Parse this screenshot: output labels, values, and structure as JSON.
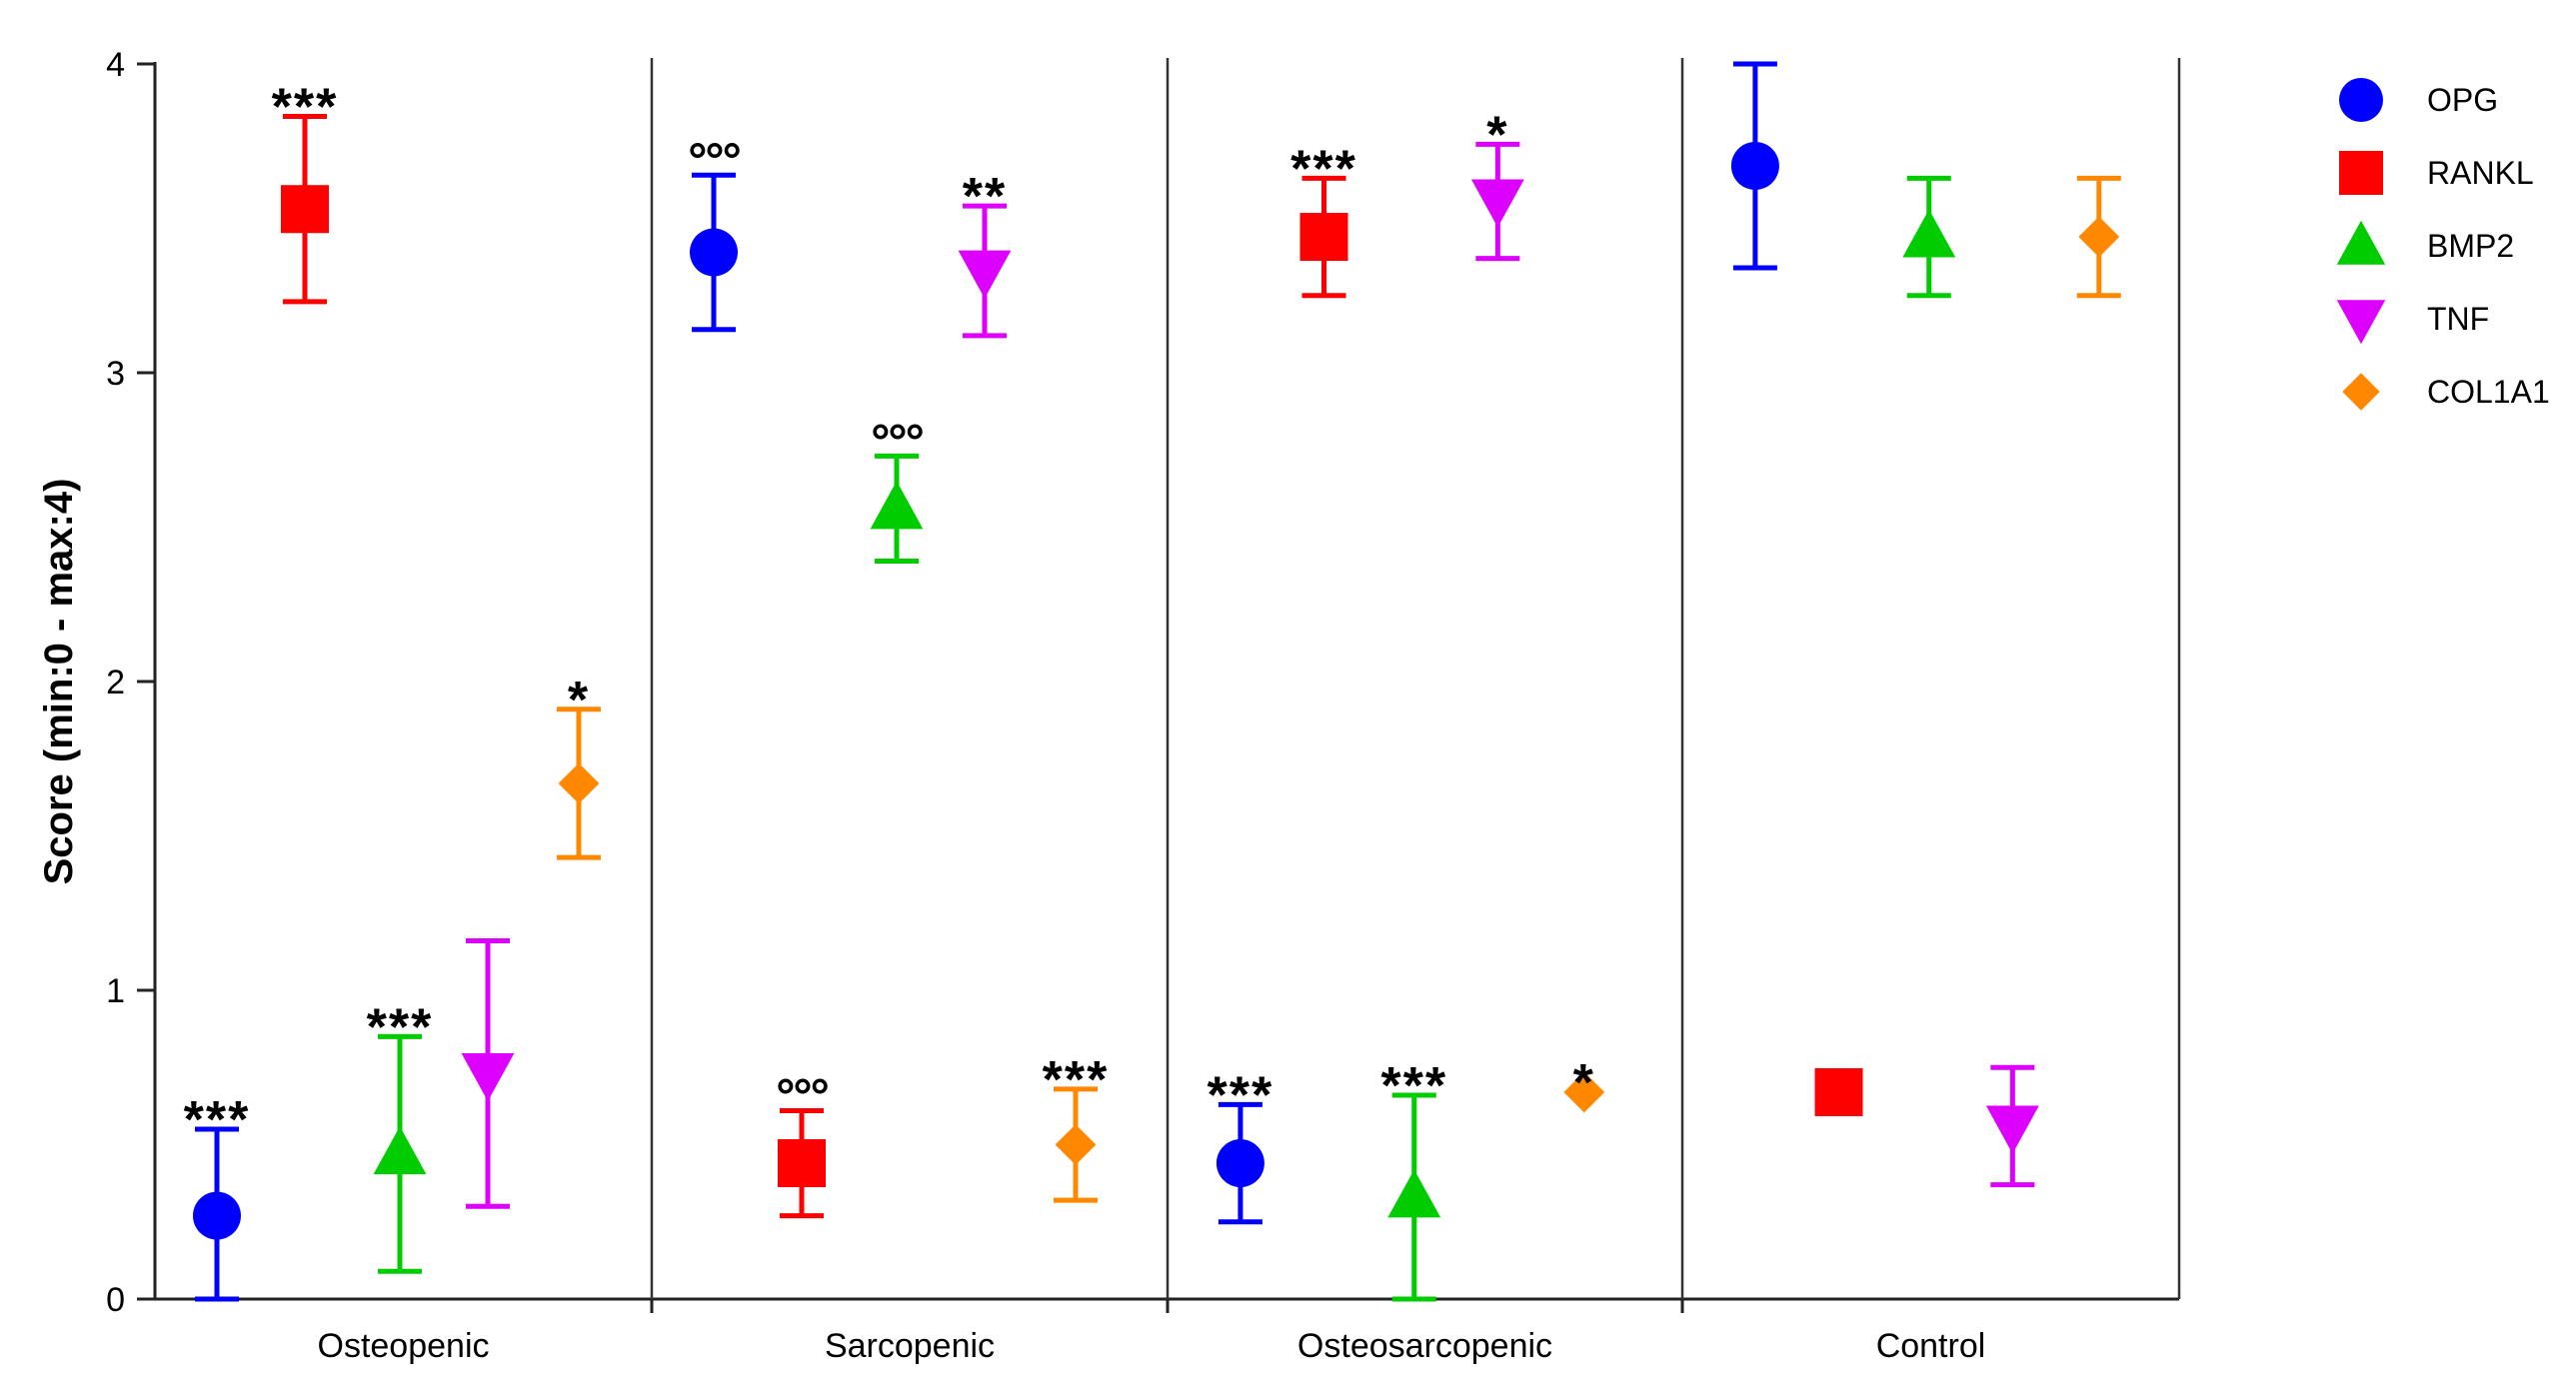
{
  "chart_data": {
    "type": "scatter",
    "title": "",
    "xlabel": "",
    "ylabel": "Score (min:0 - max:4)",
    "ylim": [
      0,
      4
    ],
    "yticks": [
      0,
      1,
      2,
      3,
      4
    ],
    "grid": false,
    "legend_position": "top-right",
    "categories": [
      "Osteopenic",
      "Sarcopenic",
      "Osteosarcopenic",
      "Control"
    ],
    "series": [
      {
        "name": "OPG",
        "color": "#0000ff",
        "marker": "circle",
        "points": [
          {
            "category": "Osteopenic",
            "value": 0.27,
            "err_low": 0.0,
            "err_high": 0.55,
            "annotation": "***"
          },
          {
            "category": "Sarcopenic",
            "value": 3.39,
            "err_low": 3.14,
            "err_high": 3.64,
            "annotation": "°°°"
          },
          {
            "category": "Osteosarcopenic",
            "value": 0.44,
            "err_low": 0.25,
            "err_high": 0.63,
            "annotation": "***"
          },
          {
            "category": "Control",
            "value": 3.67,
            "err_low": 3.34,
            "err_high": 4.0,
            "annotation": ""
          }
        ]
      },
      {
        "name": "RANKL",
        "color": "#ff0000",
        "marker": "square",
        "points": [
          {
            "category": "Osteopenic",
            "value": 3.53,
            "err_low": 3.23,
            "err_high": 3.83,
            "annotation": "***"
          },
          {
            "category": "Sarcopenic",
            "value": 0.44,
            "err_low": 0.27,
            "err_high": 0.61,
            "annotation": "°°°"
          },
          {
            "category": "Osteosarcopenic",
            "value": 3.44,
            "err_low": 3.25,
            "err_high": 3.63,
            "annotation": "***"
          },
          {
            "category": "Control",
            "value": 0.67,
            "err_low": 0.67,
            "err_high": 0.67,
            "annotation": ""
          }
        ]
      },
      {
        "name": "BMP2",
        "color": "#00cc00",
        "marker": "triangle-up",
        "points": [
          {
            "category": "Osteopenic",
            "value": 0.47,
            "err_low": 0.09,
            "err_high": 0.85,
            "annotation": "***"
          },
          {
            "category": "Sarcopenic",
            "value": 2.56,
            "err_low": 2.39,
            "err_high": 2.73,
            "annotation": "°°°"
          },
          {
            "category": "Osteosarcopenic",
            "value": 0.33,
            "err_low": 0.0,
            "err_high": 0.66,
            "annotation": "***"
          },
          {
            "category": "Control",
            "value": 3.44,
            "err_low": 3.25,
            "err_high": 3.63,
            "annotation": ""
          }
        ]
      },
      {
        "name": "TNF",
        "color": "#dd00ff",
        "marker": "triangle-down",
        "points": [
          {
            "category": "Osteopenic",
            "value": 0.73,
            "err_low": 0.3,
            "err_high": 1.16,
            "annotation": ""
          },
          {
            "category": "Sarcopenic",
            "value": 3.33,
            "err_low": 3.12,
            "err_high": 3.54,
            "annotation": "**"
          },
          {
            "category": "Osteosarcopenic",
            "value": 3.56,
            "err_low": 3.37,
            "err_high": 3.74,
            "annotation": "*"
          },
          {
            "category": "Control",
            "value": 0.56,
            "err_low": 0.37,
            "err_high": 0.75,
            "annotation": ""
          }
        ]
      },
      {
        "name": "COL1A1",
        "color": "#ff8800",
        "marker": "diamond",
        "points": [
          {
            "category": "Osteopenic",
            "value": 1.67,
            "err_low": 1.43,
            "err_high": 1.91,
            "annotation": "*"
          },
          {
            "category": "Sarcopenic",
            "value": 0.5,
            "err_low": 0.32,
            "err_high": 0.68,
            "annotation": "***"
          },
          {
            "category": "Osteosarcopenic",
            "value": 0.67,
            "err_low": 0.67,
            "err_high": 0.67,
            "annotation": "*"
          },
          {
            "category": "Control",
            "value": 3.44,
            "err_low": 3.25,
            "err_high": 3.63,
            "annotation": ""
          }
        ]
      }
    ]
  }
}
